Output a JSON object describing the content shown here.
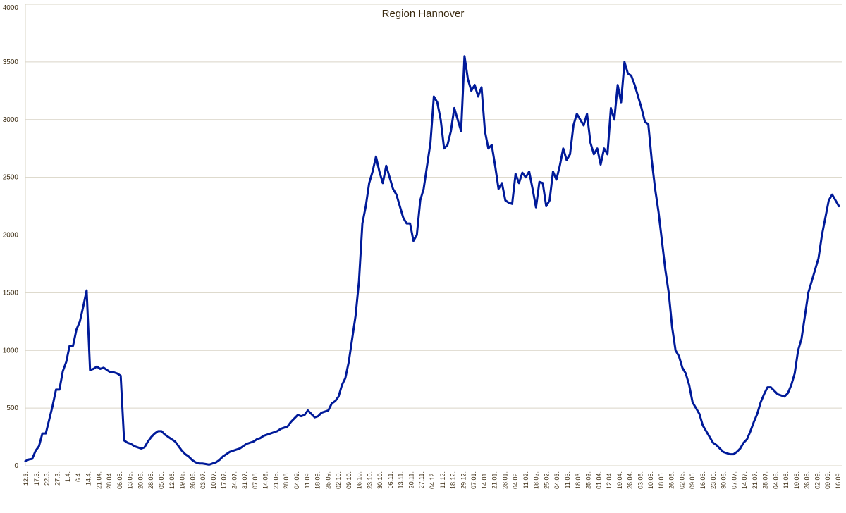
{
  "chart_data": {
    "type": "line",
    "title": "Region Hannover",
    "xlabel": "",
    "ylabel": "",
    "ylim": [
      0,
      4000
    ],
    "yticks": [
      0,
      500,
      1000,
      1500,
      2000,
      2500,
      3000,
      3500,
      4000
    ],
    "grid": true,
    "line_color": "#001a99",
    "x_tick_labels": [
      "12.3.",
      "17.3.",
      "22.3.",
      "27.3.",
      "1.4.",
      "6.4.",
      "14.4.",
      "21.04.",
      "28.04.",
      "06.05.",
      "13.05.",
      "20.05.",
      "28.05.",
      "05.06.",
      "12.06.",
      "19.06.",
      "26.06.",
      "03.07.",
      "10.07.",
      "17.07.",
      "24.07.",
      "31.07.",
      "07.08.",
      "14.08.",
      "21.08.",
      "28.08.",
      "04.09.",
      "11.09.",
      "18.09.",
      "25.09.",
      "02.10.",
      "09.10.",
      "16.10.",
      "23.10.",
      "30.10.",
      "06.11.",
      "13.11.",
      "20.11.",
      "27.11.",
      "04.12.",
      "11.12.",
      "18.12.",
      "29.12.",
      "07.01.",
      "14.01.",
      "21.01.",
      "28.01.",
      "04.02.",
      "11.02.",
      "18.02.",
      "25.02.",
      "04.03.",
      "11.03.",
      "18.03.",
      "25.03.",
      "01.04.",
      "12.04.",
      "19.04.",
      "26.04.",
      "03.05.",
      "10.05.",
      "18.05.",
      "26.05.",
      "02.06.",
      "09.06.",
      "16.06.",
      "23.06.",
      "30.06.",
      "07.07.",
      "14.07.",
      "21.07.",
      "28.07.",
      "04.08.",
      "11.08.",
      "19.08.",
      "26.08.",
      "02.09.",
      "09.09.",
      "16.09."
    ],
    "series": [
      {
        "values": [
          40,
          55,
          60,
          130,
          170,
          280,
          280,
          400,
          520,
          660,
          660,
          820,
          900,
          1040,
          1040,
          1180,
          1250,
          1380,
          1520,
          830,
          840,
          860,
          840,
          850,
          830,
          810,
          810,
          800,
          780,
          220,
          200,
          190,
          170,
          160,
          150,
          160,
          210,
          250,
          280,
          300,
          300,
          270,
          250,
          230,
          210,
          170,
          130,
          100,
          80,
          50,
          30,
          20,
          20,
          15,
          10,
          20,
          30,
          50,
          80,
          100,
          120,
          130,
          140,
          150,
          170,
          190,
          200,
          210,
          230,
          240,
          260,
          270,
          280,
          290,
          300,
          320,
          330,
          340,
          380,
          410,
          440,
          430,
          440,
          480,
          450,
          420,
          430,
          460,
          470,
          480,
          540,
          560,
          600,
          700,
          760,
          900,
          1100,
          1300,
          1600,
          2100,
          2250,
          2450,
          2550,
          2680,
          2550,
          2450,
          2600,
          2500,
          2400,
          2350,
          2250,
          2150,
          2100,
          2100,
          1950,
          2000,
          2300,
          2400,
          2600,
          2800,
          3200,
          3150,
          3000,
          2750,
          2780,
          2900,
          3100,
          3000,
          2900,
          3550,
          3350,
          3250,
          3300,
          3200,
          3280,
          2900,
          2750,
          2780,
          2600,
          2400,
          2450,
          2300,
          2280,
          2270,
          2530,
          2450,
          2540,
          2500,
          2550,
          2400,
          2240,
          2460,
          2450,
          2250,
          2300,
          2550,
          2480,
          2600,
          2750,
          2650,
          2700,
          2950,
          3050,
          3000,
          2950,
          3050,
          2800,
          2700,
          2750,
          2610,
          2750,
          2700,
          3100,
          3000,
          3300,
          3150,
          3500,
          3400,
          3380,
          3300,
          3200,
          3100,
          2980,
          2960,
          2650,
          2400,
          2200,
          1950,
          1700,
          1500,
          1200,
          1000,
          950,
          850,
          800,
          700,
          550,
          500,
          450,
          350,
          300,
          250,
          200,
          180,
          150,
          120,
          110,
          100,
          100,
          120,
          150,
          200,
          230,
          300,
          380,
          450,
          550,
          620,
          680,
          680,
          650,
          620,
          610,
          600,
          630,
          700,
          800,
          1000,
          1100,
          1300,
          1500,
          1600,
          1700,
          1800,
          2000,
          2150,
          2300,
          2350,
          2300,
          2250
        ]
      }
    ]
  }
}
